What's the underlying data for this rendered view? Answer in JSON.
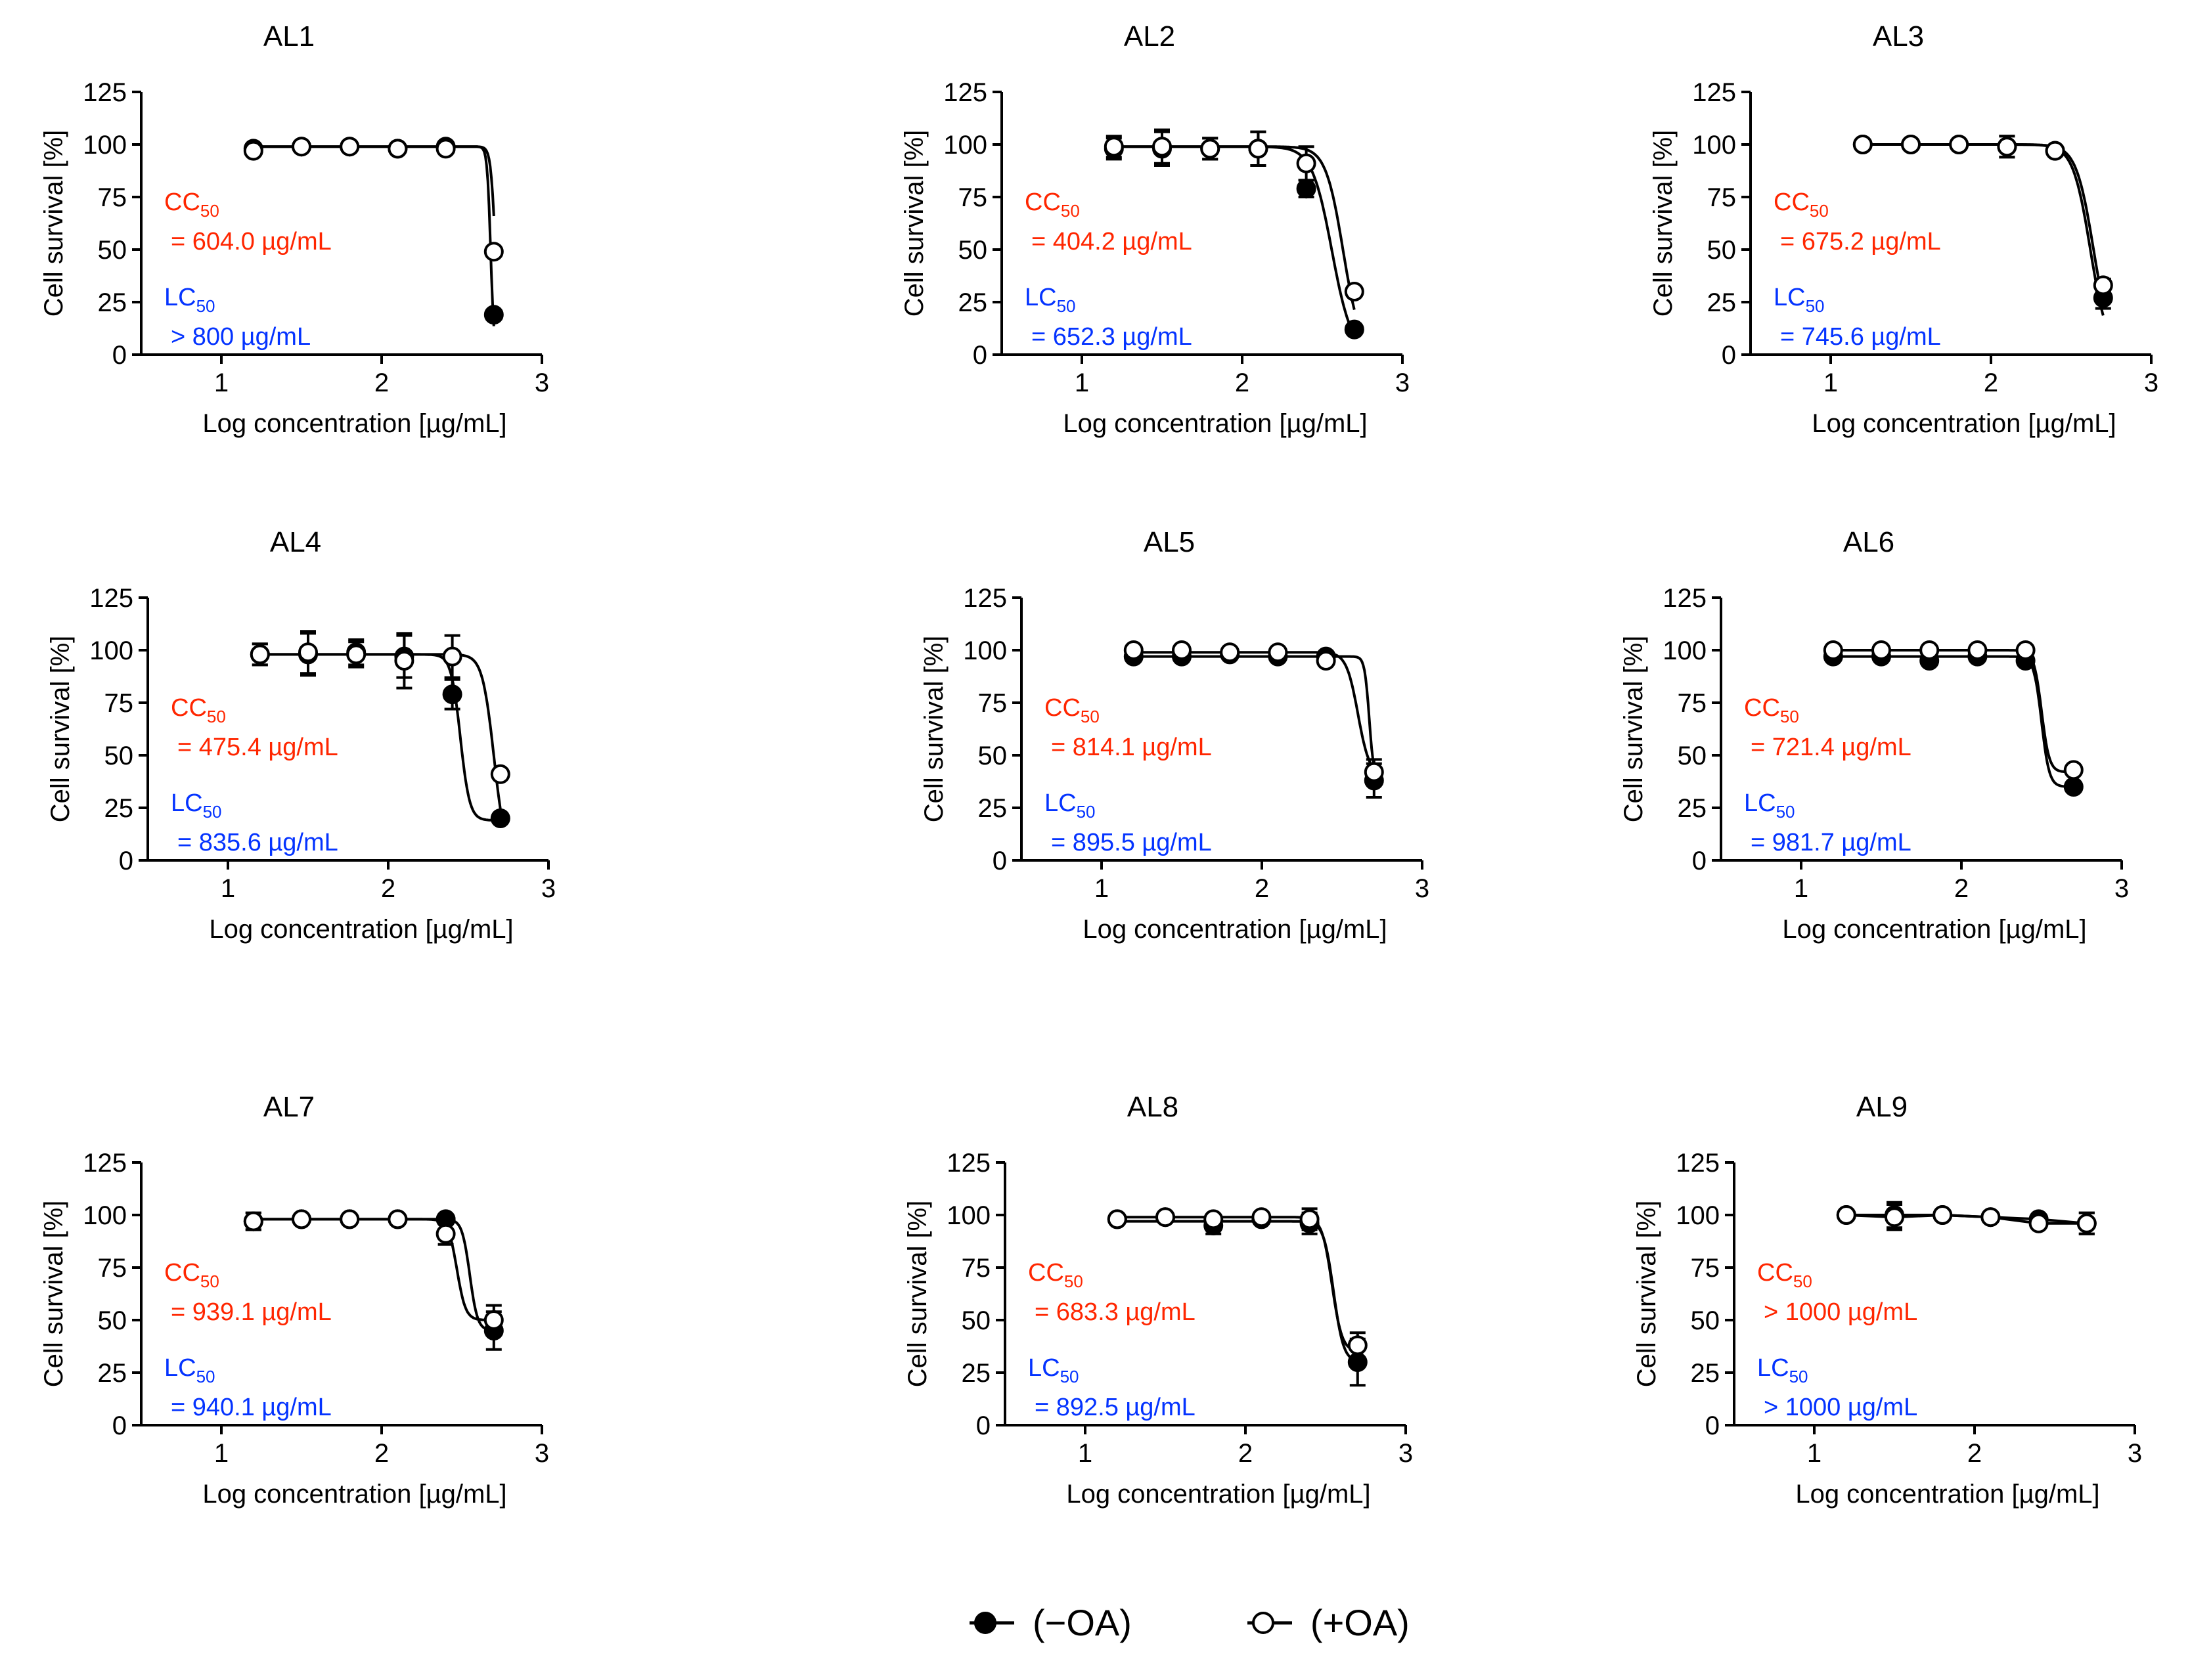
{
  "colors": {
    "cc": "#ff2600",
    "lc": "#0433ff",
    "axis": "#000000"
  },
  "legend": [
    {
      "marker": "filled",
      "label": "(−OA)"
    },
    {
      "marker": "open",
      "label": "(+OA)"
    }
  ],
  "chart_data": [
    {
      "type": "scatter",
      "title": "AL1",
      "xlabel": "Log concentration [µg/mL]",
      "ylabel": "Cell survival [%]",
      "xlim": [
        0.5,
        3
      ],
      "ylim": [
        0,
        125
      ],
      "xticks": [
        "1",
        "2",
        "3"
      ],
      "yticks": [
        "0",
        "25",
        "50",
        "75",
        "100",
        "125"
      ],
      "annotations": {
        "cc_label": "CC",
        "cc_value": "= 604.0 µg/mL",
        "lc_label": "LC",
        "lc_value": "> 800 µg/mL",
        "subscript": "50"
      },
      "x": [
        1.2,
        1.5,
        1.8,
        2.1,
        2.4,
        2.7
      ],
      "series": [
        {
          "name": "(−OA)",
          "marker": "filled",
          "values": [
            98,
            99,
            99,
            98,
            99,
            19
          ],
          "errors": [
            1,
            1,
            1,
            1,
            1,
            2
          ],
          "curve": {
            "top": 99,
            "bottom": 0,
            "logec50": 2.68,
            "hill": 40
          }
        },
        {
          "name": "(+OA)",
          "marker": "open",
          "values": [
            97,
            99,
            99,
            98,
            98,
            49
          ],
          "errors": [
            1,
            1,
            1,
            1,
            1,
            2
          ],
          "curve": {
            "top": 99,
            "bottom": 0,
            "logec50": 2.71,
            "hill": 30
          }
        }
      ]
    },
    {
      "type": "scatter",
      "title": "AL2",
      "xlabel": "Log concentration [µg/mL]",
      "ylabel": "Cell survival [%]",
      "xlim": [
        0.5,
        3
      ],
      "ylim": [
        0,
        125
      ],
      "xticks": [
        "1",
        "2",
        "3"
      ],
      "yticks": [
        "0",
        "25",
        "50",
        "75",
        "100",
        "125"
      ],
      "annotations": {
        "cc_label": "CC",
        "cc_value": "= 404.2 µg/mL",
        "lc_label": "LC",
        "lc_value": "= 652.3 µg/mL",
        "subscript": "50"
      },
      "x": [
        1.2,
        1.5,
        1.8,
        2.1,
        2.4,
        2.7
      ],
      "series": [
        {
          "name": "(−OA)",
          "marker": "filled",
          "values": [
            98,
            98,
            98,
            98,
            79,
            12
          ],
          "errors": [
            5,
            8,
            5,
            8,
            4,
            2
          ],
          "curve": {
            "top": 99,
            "bottom": 0,
            "logec50": 2.56,
            "hill": 7
          }
        },
        {
          "name": "(+OA)",
          "marker": "open",
          "values": [
            99,
            99,
            98,
            98,
            91,
            30
          ],
          "errors": [
            5,
            8,
            5,
            8,
            8,
            2
          ],
          "curve": {
            "top": 99,
            "bottom": 0,
            "logec50": 2.63,
            "hill": 8
          }
        }
      ]
    },
    {
      "type": "scatter",
      "title": "AL3",
      "xlabel": "Log concentration [µg/mL]",
      "ylabel": "Cell survival [%]",
      "xlim": [
        0.5,
        3
      ],
      "ylim": [
        0,
        125
      ],
      "xticks": [
        "1",
        "2",
        "3"
      ],
      "yticks": [
        "0",
        "25",
        "50",
        "75",
        "100",
        "125"
      ],
      "annotations": {
        "cc_label": "CC",
        "cc_value": "= 675.2 µg/mL",
        "lc_label": "LC",
        "lc_value": "= 745.6 µg/mL",
        "subscript": "50"
      },
      "x": [
        1.2,
        1.5,
        1.8,
        2.1,
        2.4,
        2.7
      ],
      "series": [
        {
          "name": "(−OA)",
          "marker": "filled",
          "values": [
            100,
            100,
            100,
            99,
            97,
            27
          ],
          "errors": [
            1,
            1,
            1,
            5,
            2,
            5
          ],
          "curve": {
            "top": 100,
            "bottom": 0,
            "logec50": 2.62,
            "hill": 8
          }
        },
        {
          "name": "(+OA)",
          "marker": "open",
          "values": [
            100,
            100,
            100,
            99,
            97,
            33
          ],
          "errors": [
            1,
            1,
            1,
            5,
            2,
            3
          ],
          "curve": {
            "top": 100,
            "bottom": 0,
            "logec50": 2.64,
            "hill": 8
          }
        }
      ]
    },
    {
      "type": "scatter",
      "title": "AL4",
      "xlabel": "Log concentration [µg/mL]",
      "ylabel": "Cell survival [%]",
      "xlim": [
        0.5,
        3
      ],
      "ylim": [
        0,
        125
      ],
      "xticks": [
        "1",
        "2",
        "3"
      ],
      "yticks": [
        "0",
        "25",
        "50",
        "75",
        "100",
        "125"
      ],
      "annotations": {
        "cc_label": "CC",
        "cc_value": "= 475.4 µg/mL",
        "lc_label": "LC",
        "lc_value": "= 835.6 µg/mL",
        "subscript": "50"
      },
      "x": [
        1.2,
        1.5,
        1.8,
        2.1,
        2.4,
        2.7
      ],
      "series": [
        {
          "name": "(−OA)",
          "marker": "filled",
          "values": [
            98,
            98,
            99,
            97,
            79,
            20
          ],
          "errors": [
            5,
            10,
            6,
            10,
            7,
            2
          ],
          "curve": {
            "top": 98,
            "bottom": 19,
            "logec50": 2.45,
            "hill": 15
          }
        },
        {
          "name": "(+OA)",
          "marker": "open",
          "values": [
            98,
            99,
            98,
            95,
            97,
            41
          ],
          "errors": [
            5,
            10,
            6,
            13,
            10,
            2
          ],
          "curve": {
            "top": 98,
            "bottom": 0,
            "logec50": 2.66,
            "hill": 12
          }
        }
      ]
    },
    {
      "type": "scatter",
      "title": "AL5",
      "xlabel": "Log concentration [µg/mL]",
      "ylabel": "Cell survival [%]",
      "xlim": [
        0.5,
        3
      ],
      "ylim": [
        0,
        125
      ],
      "xticks": [
        "1",
        "2",
        "3"
      ],
      "yticks": [
        "0",
        "25",
        "50",
        "75",
        "100",
        "125"
      ],
      "annotations": {
        "cc_label": "CC",
        "cc_value": "= 814.1 µg/mL",
        "lc_label": "LC",
        "lc_value": "= 895.5 µg/mL",
        "subscript": "50"
      },
      "x": [
        1.2,
        1.5,
        1.8,
        2.1,
        2.4,
        2.7
      ],
      "series": [
        {
          "name": "(−OA)",
          "marker": "filled",
          "values": [
            97,
            97,
            98,
            97,
            97,
            38
          ],
          "errors": [
            1,
            1,
            1,
            1,
            1,
            8
          ],
          "curve": {
            "top": 97,
            "bottom": 38,
            "logec50": 2.67,
            "hill": 30
          }
        },
        {
          "name": "(+OA)",
          "marker": "open",
          "values": [
            100,
            100,
            99,
            99,
            95,
            42
          ],
          "errors": [
            1,
            1,
            1,
            1,
            1,
            6
          ],
          "curve": {
            "top": 99,
            "bottom": 40,
            "logec50": 2.6,
            "hill": 12
          }
        }
      ]
    },
    {
      "type": "scatter",
      "title": "AL6",
      "xlabel": "Log concentration [µg/mL]",
      "ylabel": "Cell survival [%]",
      "xlim": [
        0.5,
        3
      ],
      "ylim": [
        0,
        125
      ],
      "xticks": [
        "1",
        "2",
        "3"
      ],
      "yticks": [
        "0",
        "25",
        "50",
        "75",
        "100",
        "125"
      ],
      "annotations": {
        "cc_label": "CC",
        "cc_value": "= 721.4 µg/mL",
        "lc_label": "LC",
        "lc_value": "= 981.7 µg/mL",
        "subscript": "50"
      },
      "x": [
        1.2,
        1.5,
        1.8,
        2.1,
        2.4,
        2.7
      ],
      "series": [
        {
          "name": "(−OA)",
          "marker": "filled",
          "values": [
            97,
            97,
            95,
            97,
            95,
            35
          ],
          "errors": [
            1,
            1,
            1,
            1,
            1,
            1
          ],
          "curve": {
            "top": 97,
            "bottom": 35,
            "logec50": 2.5,
            "hill": 18
          }
        },
        {
          "name": "(+OA)",
          "marker": "open",
          "values": [
            100,
            100,
            100,
            100,
            100,
            43
          ],
          "errors": [
            1,
            1,
            1,
            1,
            1,
            1
          ],
          "curve": {
            "top": 100,
            "bottom": 42,
            "logec50": 2.5,
            "hill": 18
          }
        }
      ]
    },
    {
      "type": "scatter",
      "title": "AL7",
      "xlabel": "Log concentration [µg/mL]",
      "ylabel": "Cell survival [%]",
      "xlim": [
        0.5,
        3
      ],
      "ylim": [
        0,
        125
      ],
      "xticks": [
        "1",
        "2",
        "3"
      ],
      "yticks": [
        "0",
        "25",
        "50",
        "75",
        "100",
        "125"
      ],
      "annotations": {
        "cc_label": "CC",
        "cc_value": "= 939.1 µg/mL",
        "lc_label": "LC",
        "lc_value": "= 940.1 µg/mL",
        "subscript": "50"
      },
      "x": [
        1.2,
        1.5,
        1.8,
        2.1,
        2.4,
        2.7
      ],
      "series": [
        {
          "name": "(−OA)",
          "marker": "filled",
          "values": [
            97,
            98,
            98,
            98,
            98,
            45
          ],
          "errors": [
            4,
            1,
            1,
            1,
            1,
            9
          ],
          "curve": {
            "top": 98,
            "bottom": 45,
            "logec50": 2.55,
            "hill": 18
          }
        },
        {
          "name": "(+OA)",
          "marker": "open",
          "values": [
            97,
            98,
            98,
            98,
            91,
            50
          ],
          "errors": [
            4,
            1,
            1,
            1,
            5,
            7
          ],
          "curve": {
            "top": 98,
            "bottom": 50,
            "logec50": 2.47,
            "hill": 16
          }
        }
      ]
    },
    {
      "type": "scatter",
      "title": "AL8",
      "xlabel": "Log concentration [µg/mL]",
      "ylabel": "Cell survival [%]",
      "xlim": [
        0.5,
        3
      ],
      "ylim": [
        0,
        125
      ],
      "xticks": [
        "1",
        "2",
        "3"
      ],
      "yticks": [
        "0",
        "25",
        "50",
        "75",
        "100",
        "125"
      ],
      "annotations": {
        "cc_label": "CC",
        "cc_value": "= 683.3 µg/mL",
        "lc_label": "LC",
        "lc_value": "= 892.5 µg/mL",
        "subscript": "50"
      },
      "x": [
        1.2,
        1.5,
        1.8,
        2.1,
        2.4,
        2.7
      ],
      "series": [
        {
          "name": "(−OA)",
          "marker": "filled",
          "values": [
            98,
            99,
            95,
            98,
            96,
            30
          ],
          "errors": [
            1,
            1,
            4,
            1,
            5,
            11
          ],
          "curve": {
            "top": 97,
            "bottom": 30,
            "logec50": 2.55,
            "hill": 14
          }
        },
        {
          "name": "(+OA)",
          "marker": "open",
          "values": [
            98,
            99,
            98,
            99,
            98,
            38
          ],
          "errors": [
            1,
            1,
            1,
            1,
            5,
            6
          ],
          "curve": {
            "top": 99,
            "bottom": 35,
            "logec50": 2.54,
            "hill": 14
          }
        }
      ]
    },
    {
      "type": "scatter",
      "title": "AL9",
      "xlabel": "Log concentration [µg/mL]",
      "ylabel": "Cell survival [%]",
      "xlim": [
        0.5,
        3
      ],
      "ylim": [
        0,
        125
      ],
      "xticks": [
        "1",
        "2",
        "3"
      ],
      "yticks": [
        "0",
        "25",
        "50",
        "75",
        "100",
        "125"
      ],
      "annotations": {
        "cc_label": "CC",
        "cc_value": "> 1000 µg/mL",
        "lc_label": "LC",
        "lc_value": "> 1000 µg/mL",
        "subscript": "50"
      },
      "x": [
        1.2,
        1.5,
        1.8,
        2.1,
        2.4,
        2.7
      ],
      "series": [
        {
          "name": "(−OA)",
          "marker": "filled",
          "values": [
            100,
            100,
            100,
            99,
            98,
            96
          ],
          "errors": [
            1,
            6,
            1,
            1,
            2,
            5
          ],
          "curve": null
        },
        {
          "name": "(+OA)",
          "marker": "open",
          "values": [
            100,
            99,
            100,
            99,
            96,
            96
          ],
          "errors": [
            1,
            6,
            1,
            1,
            2,
            5
          ],
          "curve": null
        }
      ]
    }
  ]
}
